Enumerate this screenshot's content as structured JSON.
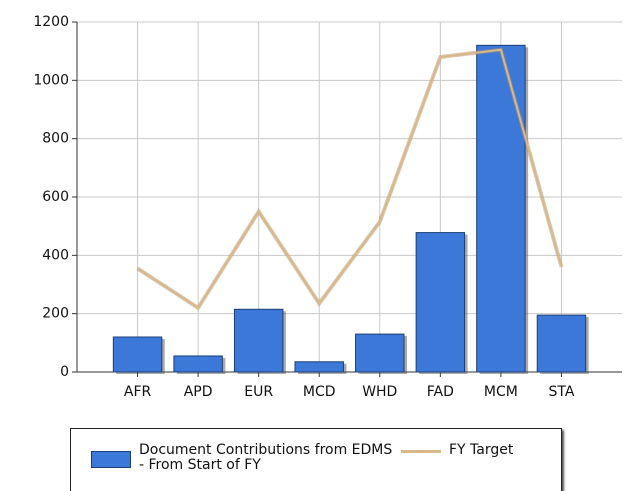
{
  "chart_data": {
    "type": "bar_line",
    "categories": [
      "AFR",
      "APD",
      "EUR",
      "MCD",
      "WHD",
      "FAD",
      "MCM",
      "STA"
    ],
    "series": [
      {
        "name": "Document Contributions from EDMS - From Start of FY",
        "type": "bar",
        "color": "#3b78d8",
        "values": [
          120,
          55,
          215,
          35,
          130,
          478,
          1120,
          195
        ]
      },
      {
        "name": "FY Target",
        "type": "line",
        "color": "#d8b88a",
        "values": [
          355,
          220,
          550,
          235,
          515,
          1080,
          1105,
          360
        ]
      }
    ],
    "ylim": [
      0,
      1200
    ],
    "yticks": [
      0,
      200,
      400,
      600,
      800,
      1000,
      1200
    ],
    "grid": true
  }
}
